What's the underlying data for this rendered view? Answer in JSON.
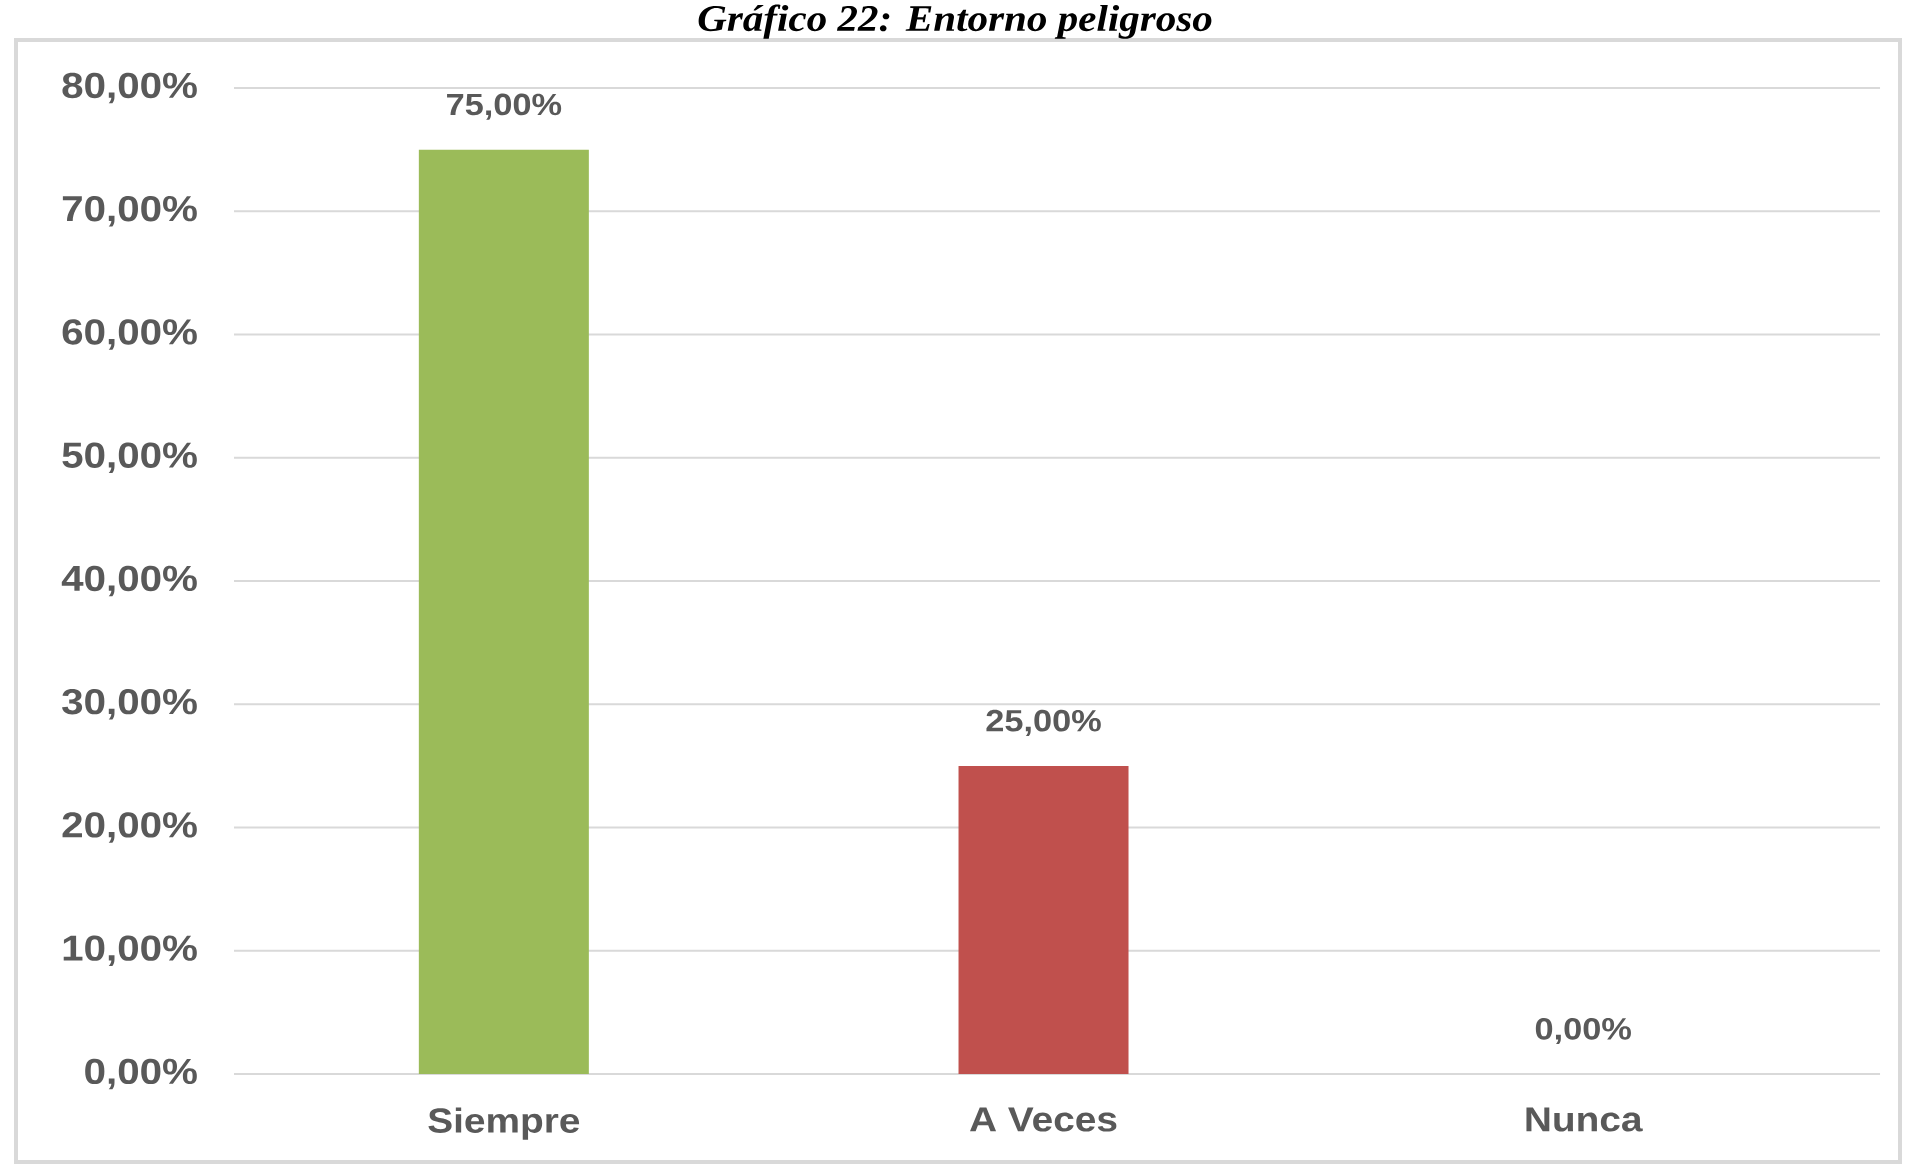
{
  "chart_data": {
    "type": "bar",
    "title": "Gráfico 22: Entorno peligroso",
    "categories": [
      "Siempre",
      "A Veces",
      "Nunca"
    ],
    "values": [
      75,
      25,
      0
    ],
    "colors": [
      "#9bbb59",
      "#c0504d",
      "#4f81bd"
    ],
    "value_labels": [
      "75,00%",
      "25,00%",
      "0,00%"
    ],
    "ylim": [
      0,
      80
    ],
    "yticks": [
      {
        "value": 0,
        "label": "0,00%"
      },
      {
        "value": 10,
        "label": "10,00%"
      },
      {
        "value": 20,
        "label": "20,00%"
      },
      {
        "value": 30,
        "label": "30,00%"
      },
      {
        "value": 40,
        "label": "40,00%"
      },
      {
        "value": 50,
        "label": "50,00%"
      },
      {
        "value": 60,
        "label": "60,00%"
      },
      {
        "value": 70,
        "label": "70,00%"
      },
      {
        "value": 80,
        "label": "80,00%"
      }
    ],
    "grid": "y"
  }
}
